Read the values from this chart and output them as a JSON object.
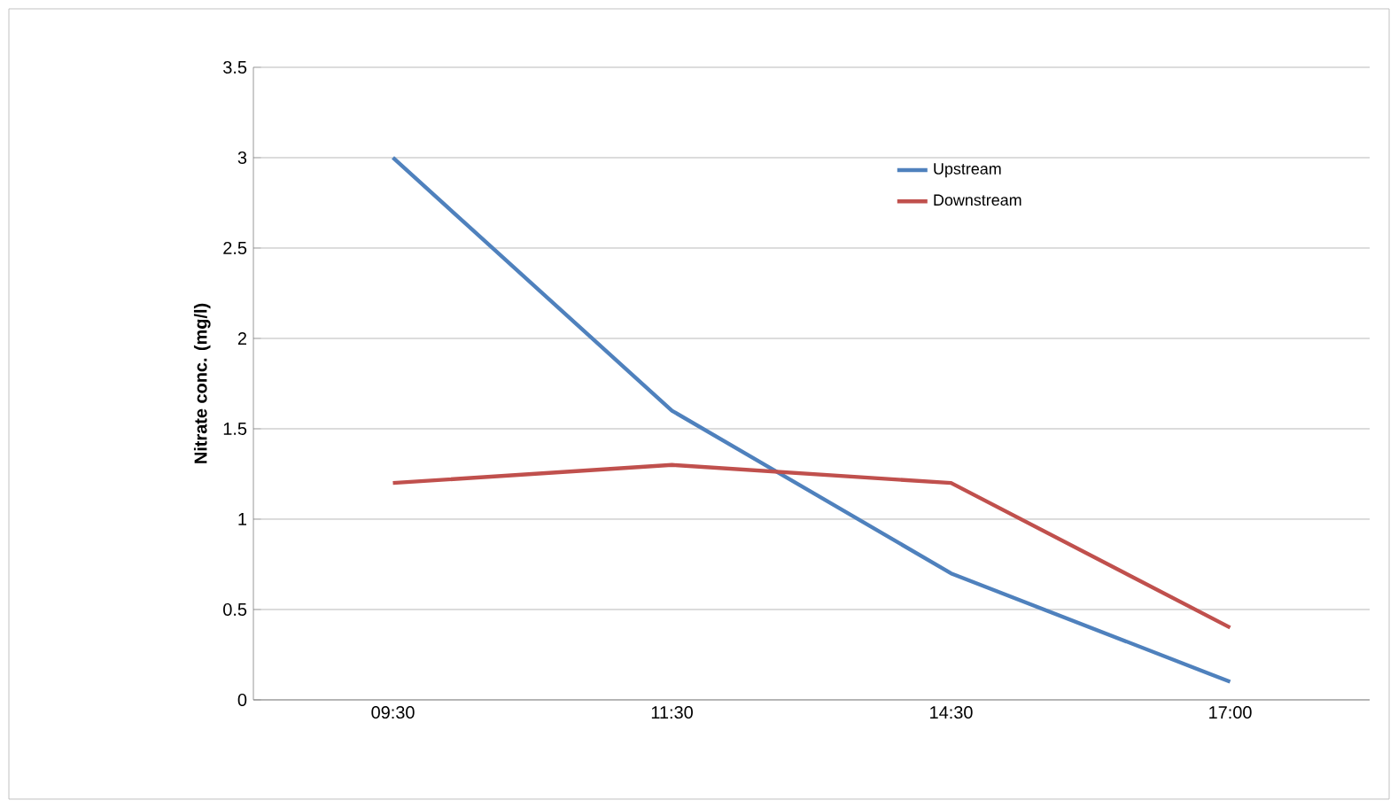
{
  "chart_data": {
    "type": "line",
    "ylabel": "Nitrate conc. (mg/l)",
    "categories": [
      "09:30",
      "11:30",
      "14:30",
      "17:00"
    ],
    "series": [
      {
        "name": "Upstream",
        "color": "#4f81bd",
        "values": [
          3,
          1.6,
          0.7,
          0.1
        ]
      },
      {
        "name": "Downstream",
        "color": "#c0504d",
        "values": [
          1.2,
          1.3,
          1.2,
          0.4
        ]
      }
    ],
    "ylim": [
      0,
      3.5
    ],
    "yticks": [
      0,
      0.5,
      1,
      1.5,
      2,
      2.5,
      3,
      3.5
    ],
    "grid": "y",
    "legend": "top right",
    "marker": "none",
    "line_style": "solid"
  }
}
